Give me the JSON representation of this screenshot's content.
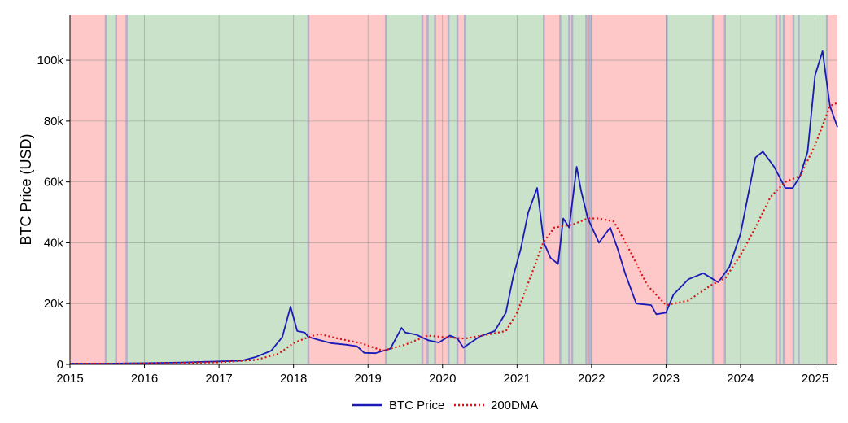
{
  "chart_data": {
    "type": "line",
    "title": "",
    "xlabel": "",
    "ylabel": "BTC Price (USD)",
    "xlim": [
      2015.0,
      2025.3
    ],
    "ylim": [
      0,
      115000
    ],
    "x_ticks": [
      2015,
      2016,
      2017,
      2018,
      2019,
      2020,
      2021,
      2022,
      2023,
      2024,
      2025
    ],
    "x_tick_labels": [
      "2015",
      "2016",
      "2017",
      "2018",
      "2019",
      "2020",
      "2021",
      "2022",
      "2023",
      "2024",
      "2025"
    ],
    "y_ticks": [
      0,
      20000,
      40000,
      60000,
      80000,
      100000
    ],
    "y_tick_labels": [
      "0",
      "20k",
      "40k",
      "60k",
      "80k",
      "100k"
    ],
    "grid": true,
    "legend_position": "bottom-center",
    "colors": {
      "btc": "#1a1ab8",
      "dma": "#dd1111",
      "bear_region": "#ffc8c8",
      "bull_region": "#c9e2c9",
      "crossover_line": "#a8a8c8"
    },
    "regions": [
      {
        "start": 2015.0,
        "end": 2015.48,
        "state": "below"
      },
      {
        "start": 2015.48,
        "end": 2015.62,
        "state": "above"
      },
      {
        "start": 2015.62,
        "end": 2015.76,
        "state": "below"
      },
      {
        "start": 2015.76,
        "end": 2018.2,
        "state": "above"
      },
      {
        "start": 2018.2,
        "end": 2019.24,
        "state": "below"
      },
      {
        "start": 2019.24,
        "end": 2019.73,
        "state": "above"
      },
      {
        "start": 2019.73,
        "end": 2019.8,
        "state": "below"
      },
      {
        "start": 2019.8,
        "end": 2019.9,
        "state": "above"
      },
      {
        "start": 2019.9,
        "end": 2020.08,
        "state": "below"
      },
      {
        "start": 2020.08,
        "end": 2020.2,
        "state": "above"
      },
      {
        "start": 2020.2,
        "end": 2020.3,
        "state": "below"
      },
      {
        "start": 2020.3,
        "end": 2021.36,
        "state": "above"
      },
      {
        "start": 2021.36,
        "end": 2021.58,
        "state": "below"
      },
      {
        "start": 2021.58,
        "end": 2021.7,
        "state": "above"
      },
      {
        "start": 2021.7,
        "end": 2021.74,
        "state": "below"
      },
      {
        "start": 2021.74,
        "end": 2021.93,
        "state": "above"
      },
      {
        "start": 2021.93,
        "end": 2021.97,
        "state": "below"
      },
      {
        "start": 2021.97,
        "end": 2022.0,
        "state": "above"
      },
      {
        "start": 2022.0,
        "end": 2023.01,
        "state": "below"
      },
      {
        "start": 2023.01,
        "end": 2023.63,
        "state": "above"
      },
      {
        "start": 2023.63,
        "end": 2023.79,
        "state": "below"
      },
      {
        "start": 2023.79,
        "end": 2024.48,
        "state": "above"
      },
      {
        "start": 2024.48,
        "end": 2024.53,
        "state": "below"
      },
      {
        "start": 2024.53,
        "end": 2024.58,
        "state": "above"
      },
      {
        "start": 2024.58,
        "end": 2024.71,
        "state": "below"
      },
      {
        "start": 2024.71,
        "end": 2024.78,
        "state": "above"
      },
      {
        "start": 2024.78,
        "end": 2025.16,
        "state": "above"
      },
      {
        "start": 2025.16,
        "end": 2025.3,
        "state": "below"
      }
    ],
    "series": [
      {
        "name": "BTC Price",
        "style": "solid",
        "x": [
          2015.0,
          2015.5,
          2016.0,
          2016.5,
          2017.0,
          2017.3,
          2017.5,
          2017.7,
          2017.85,
          2017.96,
          2018.05,
          2018.15,
          2018.2,
          2018.35,
          2018.5,
          2018.7,
          2018.85,
          2018.95,
          2019.1,
          2019.3,
          2019.45,
          2019.5,
          2019.65,
          2019.8,
          2019.95,
          2020.1,
          2020.2,
          2020.28,
          2020.5,
          2020.7,
          2020.85,
          2020.95,
          2021.05,
          2021.15,
          2021.27,
          2021.36,
          2021.45,
          2021.55,
          2021.62,
          2021.7,
          2021.8,
          2021.86,
          2021.95,
          2022.1,
          2022.25,
          2022.35,
          2022.45,
          2022.6,
          2022.8,
          2022.87,
          2023.0,
          2023.1,
          2023.3,
          2023.5,
          2023.7,
          2023.85,
          2024.0,
          2024.2,
          2024.3,
          2024.45,
          2024.6,
          2024.7,
          2024.8,
          2024.9,
          2025.0,
          2025.1,
          2025.2,
          2025.3
        ],
        "y": [
          300,
          280,
          430,
          650,
          1000,
          1200,
          2500,
          4500,
          9000,
          19000,
          11000,
          10500,
          9000,
          8000,
          7000,
          6500,
          6000,
          3800,
          3700,
          5200,
          12000,
          10500,
          9800,
          8000,
          7200,
          9500,
          8500,
          5500,
          9200,
          11000,
          17000,
          29000,
          38000,
          50000,
          58000,
          40000,
          35000,
          33000,
          48000,
          45000,
          65000,
          57000,
          48000,
          40000,
          45000,
          38000,
          30000,
          20000,
          19500,
          16500,
          17000,
          23000,
          28000,
          30000,
          27000,
          32000,
          43000,
          68000,
          70000,
          65000,
          58000,
          58000,
          62000,
          70000,
          95000,
          103000,
          85000,
          78000
        ]
      },
      {
        "name": "200DMA",
        "style": "dotted",
        "x": [
          2015.0,
          2016.0,
          2017.0,
          2017.5,
          2017.8,
          2018.0,
          2018.2,
          2018.35,
          2018.6,
          2018.9,
          2019.2,
          2019.5,
          2019.8,
          2020.0,
          2020.3,
          2020.6,
          2020.85,
          2021.0,
          2021.2,
          2021.35,
          2021.5,
          2021.75,
          2021.95,
          2022.1,
          2022.3,
          2022.5,
          2022.75,
          2023.0,
          2023.3,
          2023.6,
          2023.8,
          2024.0,
          2024.2,
          2024.4,
          2024.6,
          2024.8,
          2025.0,
          2025.2,
          2025.3
        ],
        "y": [
          250,
          300,
          700,
          1500,
          3500,
          7000,
          9000,
          10000,
          8500,
          7000,
          4500,
          6500,
          9500,
          9000,
          8500,
          9800,
          11000,
          17000,
          30000,
          40000,
          45000,
          46000,
          48000,
          48000,
          47000,
          38000,
          26000,
          19500,
          21000,
          26000,
          28500,
          36000,
          45000,
          55000,
          60000,
          62000,
          72000,
          85000,
          86000
        ]
      }
    ],
    "legend": [
      "BTC Price",
      "200DMA"
    ]
  }
}
